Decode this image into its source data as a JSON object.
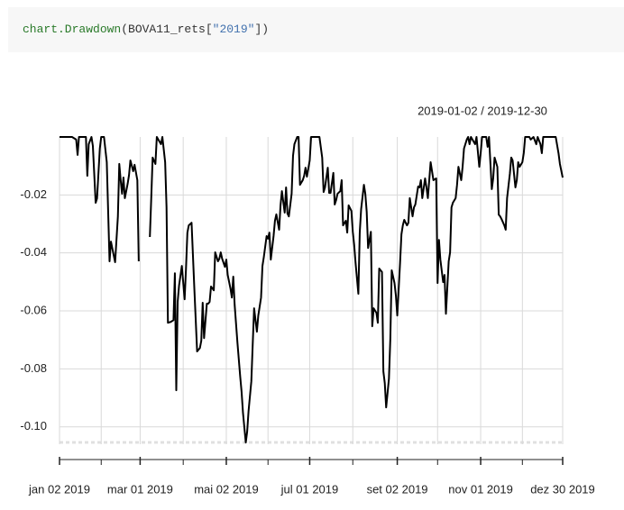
{
  "code_tokens": [
    "chart.Drawdown",
    "(BOVA11_rets[",
    "\"2019\"",
    "])"
  ],
  "chart_data": {
    "type": "line",
    "title": "2019-01-02 / 2019-12-30",
    "xlim": [
      "2019-01-02",
      "2019-12-30"
    ],
    "xticks": [
      {
        "value": "2019-01-02",
        "label": "jan 02 2019"
      },
      {
        "value": "2019-03-01",
        "label": "mar 01 2019"
      },
      {
        "value": "2019-05-02",
        "label": "mai 02 2019"
      },
      {
        "value": "2019-07-01",
        "label": "jul 01 2019"
      },
      {
        "value": "2019-09-02",
        "label": "set 02 2019"
      },
      {
        "value": "2019-11-01",
        "label": "nov 01 2019"
      },
      {
        "value": "2019-12-30",
        "label": "dez 30 2019"
      }
    ],
    "xticks_minor": [
      "2019-02-01",
      "2019-04-01",
      "2019-06-01",
      "2019-08-01",
      "2019-10-01",
      "2019-12-01"
    ],
    "ylim": [
      -0.106,
      0
    ],
    "yticks": [
      -0.02,
      -0.04,
      -0.06,
      -0.08,
      {
        "value": -0.1,
        "label": "-0.10"
      }
    ],
    "grid": true,
    "series": [
      {
        "color": "#000000",
        "x": [
          "2019-01-02",
          "2019-01-11",
          "2019-01-14",
          "2019-01-15",
          "2019-01-16",
          "2019-01-21",
          "2019-01-22",
          "2019-01-23",
          "2019-01-25",
          "2019-01-26",
          "2019-01-28",
          "2019-01-29",
          "2019-01-31",
          "2019-02-01",
          "2019-02-03",
          "2019-02-05",
          "2019-02-07",
          "2019-02-08",
          "2019-02-11",
          "2019-02-13",
          "2019-02-14",
          "2019-02-15",
          "2019-02-16",
          "2019-02-17",
          "2019-02-18",
          "2019-02-20",
          "2019-02-21",
          "2019-02-22",
          "2019-02-24",
          "2019-02-25",
          "2019-02-27",
          "2019-02-28",
          "2019-03-04",
          "2019-03-08",
          "2019-03-09",
          "2019-03-10",
          "2019-03-12",
          "2019-03-13",
          "2019-03-16",
          "2019-03-17",
          "2019-03-19",
          "2019-03-20",
          "2019-03-21",
          "2019-03-23",
          "2019-03-25",
          "2019-03-26",
          "2019-03-27",
          "2019-03-28",
          "2019-03-29",
          "2019-03-31",
          "2019-04-02",
          "2019-04-03",
          "2019-04-04",
          "2019-04-05",
          "2019-04-07",
          "2019-04-09",
          "2019-04-11",
          "2019-04-13",
          "2019-04-14",
          "2019-04-15",
          "2019-04-16",
          "2019-04-18",
          "2019-04-19",
          "2019-04-20",
          "2019-04-21",
          "2019-04-23",
          "2019-04-24",
          "2019-04-26",
          "2019-04-27",
          "2019-04-28",
          "2019-04-29",
          "2019-05-01",
          "2019-05-02",
          "2019-05-03",
          "2019-05-05",
          "2019-05-06",
          "2019-05-07",
          "2019-05-08",
          "2019-05-10",
          "2019-05-12",
          "2019-05-13",
          "2019-05-14",
          "2019-05-16",
          "2019-05-17",
          "2019-05-18",
          "2019-05-20",
          "2019-05-21",
          "2019-05-22",
          "2019-05-24",
          "2019-05-25",
          "2019-05-27",
          "2019-05-28",
          "2019-05-29",
          "2019-05-31",
          "2019-06-01",
          "2019-06-02",
          "2019-06-03",
          "2019-06-05",
          "2019-06-06",
          "2019-06-07",
          "2019-06-09",
          "2019-06-10",
          "2019-06-11",
          "2019-06-13",
          "2019-06-14",
          "2019-06-15",
          "2019-06-16",
          "2019-06-18",
          "2019-06-19",
          "2019-06-20",
          "2019-06-22",
          "2019-06-23",
          "2019-06-24",
          "2019-06-26",
          "2019-06-27",
          "2019-06-28",
          "2019-06-29",
          "2019-07-01",
          "2019-07-02",
          "2019-07-08",
          "2019-07-10",
          "2019-07-11",
          "2019-07-12",
          "2019-07-14",
          "2019-07-15",
          "2019-07-16",
          "2019-07-18",
          "2019-07-19",
          "2019-07-20",
          "2019-07-21",
          "2019-07-23",
          "2019-07-24",
          "2019-07-25",
          "2019-07-27",
          "2019-07-28",
          "2019-07-29",
          "2019-07-31",
          "2019-08-01",
          "2019-08-02",
          "2019-08-03",
          "2019-08-05",
          "2019-08-06",
          "2019-08-07",
          "2019-08-09",
          "2019-08-10",
          "2019-08-11",
          "2019-08-12",
          "2019-08-14",
          "2019-08-15",
          "2019-08-16",
          "2019-08-18",
          "2019-08-19",
          "2019-08-20",
          "2019-08-22",
          "2019-08-23",
          "2019-08-24",
          "2019-08-25",
          "2019-08-27",
          "2019-08-28",
          "2019-08-29",
          "2019-08-31",
          "2019-09-01",
          "2019-09-02",
          "2019-09-04",
          "2019-09-05",
          "2019-09-06",
          "2019-09-07",
          "2019-09-09",
          "2019-09-10",
          "2019-09-11",
          "2019-09-13",
          "2019-09-14",
          "2019-09-15",
          "2019-09-17",
          "2019-09-18",
          "2019-09-19",
          "2019-09-20",
          "2019-09-22",
          "2019-09-23",
          "2019-09-24",
          "2019-09-26",
          "2019-09-27",
          "2019-09-28",
          "2019-09-30",
          "2019-10-01",
          "2019-10-02",
          "2019-10-03",
          "2019-10-05",
          "2019-10-06",
          "2019-10-07",
          "2019-10-09",
          "2019-10-10",
          "2019-10-11",
          "2019-10-12",
          "2019-10-14",
          "2019-10-15",
          "2019-10-16",
          "2019-10-18",
          "2019-10-19",
          "2019-10-20",
          "2019-10-22",
          "2019-10-23",
          "2019-10-24",
          "2019-10-25",
          "2019-10-28",
          "2019-10-29",
          "2019-10-31",
          "2019-11-01",
          "2019-11-02",
          "2019-11-05",
          "2019-11-06",
          "2019-11-07",
          "2019-11-09",
          "2019-11-10",
          "2019-11-11",
          "2019-11-13",
          "2019-11-14",
          "2019-11-15",
          "2019-11-16",
          "2019-11-18",
          "2019-11-19",
          "2019-11-20",
          "2019-11-22",
          "2019-11-23",
          "2019-11-24",
          "2019-11-26",
          "2019-11-27",
          "2019-11-28",
          "2019-11-29",
          "2019-12-01",
          "2019-12-02",
          "2019-12-03",
          "2019-12-06",
          "2019-12-07",
          "2019-12-09",
          "2019-12-11",
          "2019-12-12",
          "2019-12-14",
          "2019-12-15",
          "2019-12-16",
          "2019-12-21",
          "2019-12-25",
          "2019-12-27",
          "2019-12-28",
          "2019-12-30"
        ],
        "values": [
          0,
          0,
          -0.0009,
          -0.0062,
          0,
          0,
          -0.0134,
          -0.0025,
          0,
          -0.0031,
          -0.0227,
          -0.0212,
          -0.004,
          0,
          0,
          -0.0087,
          -0.0429,
          -0.0361,
          -0.0432,
          -0.0274,
          -0.0093,
          -0.0149,
          -0.0196,
          -0.014,
          -0.0211,
          -0.0162,
          -0.0132,
          -0.0081,
          -0.0118,
          -0.0096,
          -0.0149,
          -0.0429,
          null,
          -0.0345,
          -0.0211,
          -0.0071,
          -0.0093,
          0,
          -0.0025,
          0,
          -0.0087,
          -0.0243,
          -0.0641,
          -0.0638,
          -0.0632,
          -0.047,
          -0.0874,
          -0.0569,
          -0.0513,
          -0.0445,
          -0.056,
          -0.0454,
          -0.033,
          -0.0305,
          -0.0296,
          -0.0523,
          -0.074,
          -0.0728,
          -0.0703,
          -0.0572,
          -0.0694,
          -0.0575,
          -0.0575,
          -0.0569,
          -0.0516,
          -0.0529,
          -0.0398,
          -0.0429,
          -0.042,
          -0.0398,
          -0.042,
          -0.0448,
          -0.0423,
          -0.0476,
          -0.0523,
          -0.0554,
          -0.0482,
          -0.0579,
          -0.0709,
          -0.0827,
          -0.088,
          -0.0952,
          -0.1054,
          -0.1017,
          -0.0946,
          -0.0843,
          -0.0715,
          -0.0591,
          -0.0672,
          -0.0616,
          -0.0554,
          -0.0445,
          -0.0414,
          -0.0342,
          -0.0351,
          -0.033,
          -0.0423,
          -0.0342,
          -0.0289,
          -0.0267,
          -0.032,
          -0.0236,
          -0.0187,
          -0.0261,
          -0.0174,
          -0.0264,
          -0.0274,
          -0.0196,
          -0.0065,
          -0.0025,
          0,
          0,
          -0.0165,
          -0.0149,
          -0.0134,
          -0.0106,
          -0.0137,
          -0.0081,
          0,
          0,
          -0.0072,
          -0.019,
          -0.0174,
          -0.0106,
          -0.0193,
          -0.0193,
          -0.0124,
          -0.0233,
          -0.0218,
          -0.0196,
          -0.0187,
          -0.0149,
          -0.0305,
          -0.0289,
          -0.033,
          -0.0236,
          -0.0255,
          -0.0327,
          -0.0373,
          -0.0435,
          -0.0541,
          -0.033,
          -0.0249,
          -0.0165,
          -0.0196,
          -0.0258,
          -0.0383,
          -0.0327,
          -0.0653,
          -0.0591,
          -0.0607,
          -0.0641,
          -0.0454,
          -0.0466,
          -0.0809,
          -0.0849,
          -0.0933,
          -0.0834,
          -0.0697,
          -0.046,
          -0.0504,
          -0.0547,
          -0.0616,
          -0.0435,
          -0.0336,
          -0.0305,
          -0.0286,
          -0.0305,
          -0.0296,
          -0.0211,
          -0.0274,
          -0.0243,
          -0.0233,
          -0.0171,
          -0.0174,
          -0.0149,
          -0.0211,
          -0.0143,
          -0.0174,
          -0.0211,
          -0.0087,
          -0.0118,
          -0.0149,
          -0.0143,
          -0.0504,
          -0.0355,
          -0.0423,
          -0.0501,
          -0.0476,
          -0.061,
          -0.0429,
          -0.0398,
          -0.0243,
          -0.0227,
          -0.0211,
          -0.0165,
          -0.0103,
          -0.0149,
          -0.0103,
          -0.004,
          -0.0009,
          0,
          -0.0025,
          0,
          -0.0025,
          0,
          -0.0103,
          -0.0056,
          0,
          0,
          -0.0034,
          0,
          -0.018,
          -0.0143,
          -0.0071,
          -0.0103,
          -0.0268,
          -0.0274,
          -0.0283,
          -0.0305,
          -0.032,
          -0.0211,
          -0.0127,
          -0.0071,
          -0.0081,
          -0.0174,
          -0.0149,
          -0.0087,
          -0.0103,
          -0.0087,
          -0.0056,
          0,
          0,
          -0.0009,
          0,
          -0.0025,
          0,
          -0.0025,
          -0.0056,
          0,
          0,
          0,
          -0.0056,
          -0.0093,
          -0.014
        ]
      }
    ]
  }
}
